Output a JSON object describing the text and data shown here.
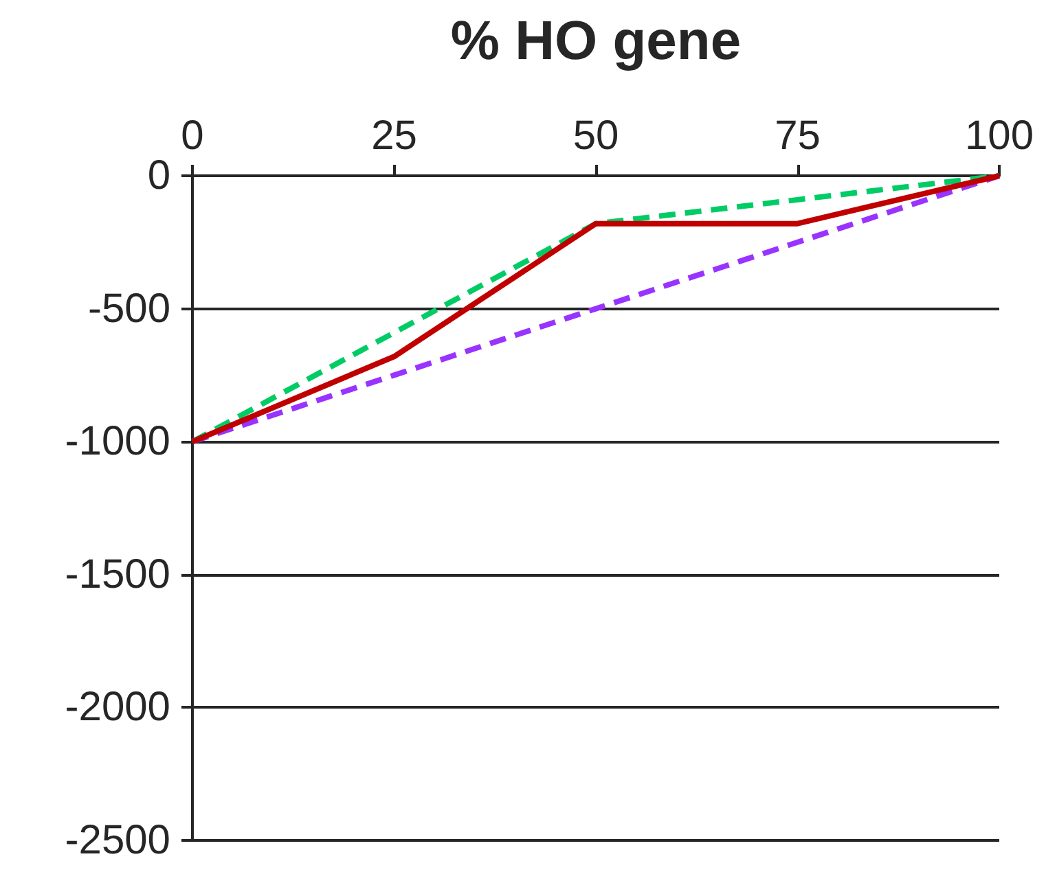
{
  "chart_data": {
    "type": "line",
    "xlabel": "% HO gene",
    "x": [
      0,
      25,
      50,
      75,
      100
    ],
    "series": [
      {
        "color": "#00cc66",
        "line_style": "dashed",
        "values": [
          -1000,
          -590,
          -180,
          -90,
          0
        ]
      },
      {
        "color": "#9933ff",
        "line_style": "dashed",
        "values": [
          -1000,
          -750,
          -500,
          -250,
          0
        ]
      },
      {
        "color": "#c00000",
        "line_style": "solid",
        "values": [
          -1000,
          -680,
          -180,
          -180,
          0
        ]
      }
    ],
    "xlim": [
      0,
      100
    ],
    "xticks": [
      0,
      25,
      50,
      75,
      100
    ],
    "ylim": [
      -2500,
      0
    ],
    "yticks": [
      -2500,
      -2000,
      -1500,
      -1000,
      -500,
      0
    ],
    "grid": "y",
    "marker": "none"
  }
}
